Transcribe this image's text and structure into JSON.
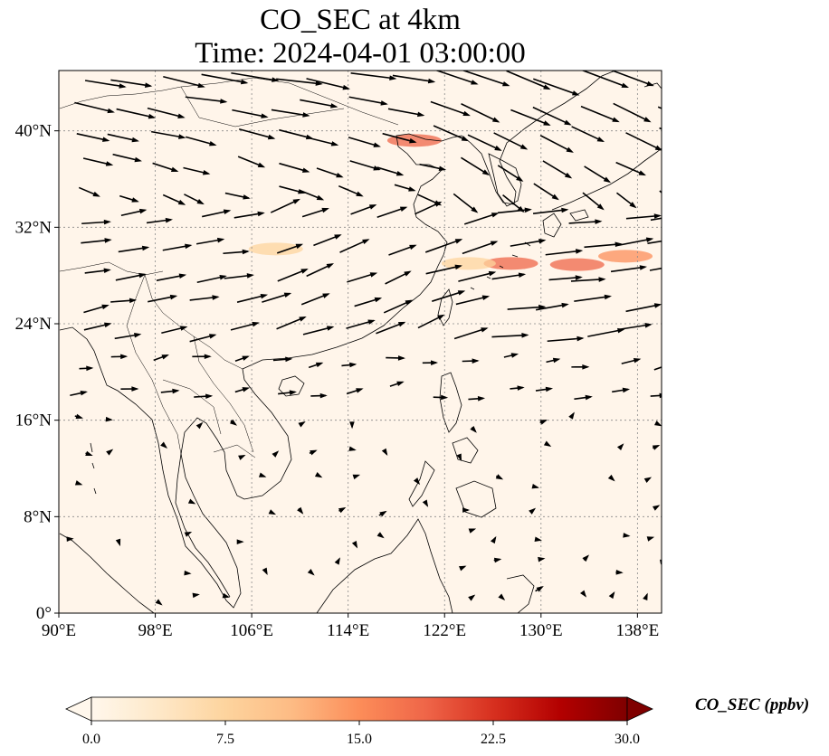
{
  "title": {
    "line1": "CO_SEC at 4km",
    "line2": "Time: 2024-04-01 03:00:00"
  },
  "map": {
    "extent": {
      "lon": [
        90,
        140
      ],
      "lat": [
        0,
        45
      ]
    },
    "lon_ticks": [
      {
        "value": 90,
        "label": "90°E"
      },
      {
        "value": 98,
        "label": "98°E"
      },
      {
        "value": 106,
        "label": "106°E"
      },
      {
        "value": 114,
        "label": "114°E"
      },
      {
        "value": 122,
        "label": "122°E"
      },
      {
        "value": 130,
        "label": "130°E"
      },
      {
        "value": 138,
        "label": "138°E"
      }
    ],
    "lat_ticks": [
      {
        "value": 0,
        "label": "0°"
      },
      {
        "value": 8,
        "label": "8°N"
      },
      {
        "value": 16,
        "label": "16°N"
      },
      {
        "value": 24,
        "label": "24°N"
      },
      {
        "value": 32,
        "label": "32°N"
      },
      {
        "value": 40,
        "label": "40°N"
      }
    ],
    "gridlines": true,
    "background_color": "#fff5ea",
    "plumes": [
      {
        "lon": 119.5,
        "lat": 39.2,
        "value": 20
      },
      {
        "lon": 127.5,
        "lat": 29.0,
        "value": 18
      },
      {
        "lon": 133.0,
        "lat": 28.9,
        "value": 17
      },
      {
        "lon": 137.0,
        "lat": 29.6,
        "value": 15
      },
      {
        "lon": 124.0,
        "lat": 29.0,
        "value": 9
      },
      {
        "lon": 108.0,
        "lat": 30.2,
        "value": 8
      }
    ]
  },
  "colorbar": {
    "label": "CO_SEC (ppbv)",
    "min": 0.0,
    "max": 30.0,
    "extend": "both",
    "colormap": "OrRd",
    "stops": [
      "#fff7ec",
      "#fee8c8",
      "#fdd49e",
      "#fdbb84",
      "#fc8d59",
      "#ef6548",
      "#d7301f",
      "#b30000",
      "#7f0000"
    ],
    "ticks": [
      {
        "value": 0.0,
        "label": "0.0"
      },
      {
        "value": 7.5,
        "label": "7.5"
      },
      {
        "value": 15.0,
        "label": "15.0"
      },
      {
        "value": 22.5,
        "label": "22.5"
      },
      {
        "value": 30.0,
        "label": "30.0"
      }
    ]
  }
}
